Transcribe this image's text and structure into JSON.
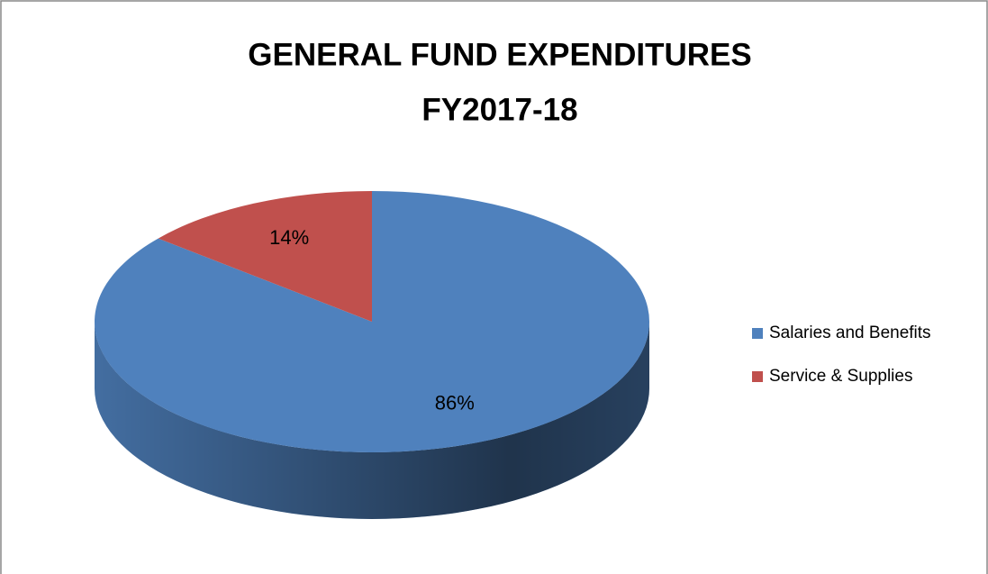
{
  "chart_data": {
    "type": "pie",
    "title": [
      "GENERAL FUND EXPENDITURES",
      "FY2017-18"
    ],
    "categories": [
      "Salaries and Benefits",
      "Service & Supplies"
    ],
    "values": [
      86,
      14
    ],
    "value_labels": [
      "86%",
      "14%"
    ],
    "colors": [
      "#4f81bd",
      "#c0504d"
    ],
    "legend": "right",
    "three_d": true
  }
}
